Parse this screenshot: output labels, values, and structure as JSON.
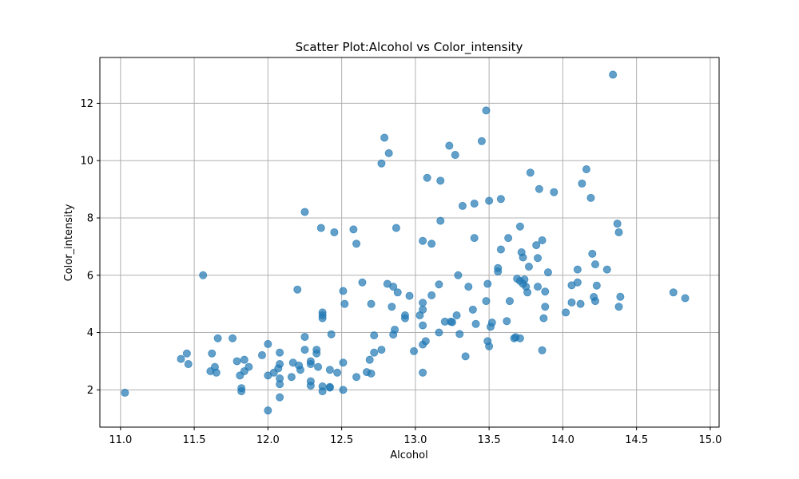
{
  "chart_data": {
    "type": "scatter",
    "title": "Scatter Plot:Alcohol vs Color_intensity",
    "xlabel": "Alcohol",
    "ylabel": "Color_intensity",
    "xlim": [
      10.86,
      15.06
    ],
    "ylim": [
      0.7,
      13.6
    ],
    "xticks": [
      11.0,
      11.5,
      12.0,
      12.5,
      13.0,
      13.5,
      14.0,
      14.5,
      15.0
    ],
    "xtick_labels": [
      "11.0",
      "11.5",
      "12.0",
      "12.5",
      "13.0",
      "13.5",
      "14.0",
      "14.5",
      "15.0"
    ],
    "yticks": [
      2,
      4,
      6,
      8,
      10,
      12
    ],
    "ytick_labels": [
      "2",
      "4",
      "6",
      "8",
      "10",
      "12"
    ],
    "grid": true,
    "marker_color": "#1f77b4",
    "marker_alpha": 0.7,
    "points": [
      [
        11.03,
        1.9
      ],
      [
        11.41,
        3.08
      ],
      [
        11.45,
        3.27
      ],
      [
        11.46,
        2.9
      ],
      [
        11.56,
        6.0
      ],
      [
        11.61,
        2.65
      ],
      [
        11.62,
        3.27
      ],
      [
        11.64,
        2.8
      ],
      [
        11.65,
        2.6
      ],
      [
        11.66,
        3.8
      ],
      [
        11.76,
        3.8
      ],
      [
        11.79,
        3.0
      ],
      [
        11.81,
        2.5
      ],
      [
        11.82,
        2.06
      ],
      [
        11.82,
        1.95
      ],
      [
        11.84,
        3.05
      ],
      [
        11.84,
        2.65
      ],
      [
        11.87,
        2.8
      ],
      [
        11.96,
        3.21
      ],
      [
        12.0,
        3.6
      ],
      [
        12.0,
        2.5
      ],
      [
        12.0,
        1.28
      ],
      [
        12.04,
        2.6
      ],
      [
        12.07,
        2.75
      ],
      [
        12.08,
        2.9
      ],
      [
        12.08,
        3.3
      ],
      [
        12.08,
        2.4
      ],
      [
        12.08,
        2.2
      ],
      [
        12.08,
        1.74
      ],
      [
        12.16,
        2.45
      ],
      [
        12.17,
        2.95
      ],
      [
        12.2,
        5.5
      ],
      [
        12.21,
        2.85
      ],
      [
        12.22,
        2.7
      ],
      [
        12.25,
        3.4
      ],
      [
        12.25,
        3.85
      ],
      [
        12.25,
        8.21
      ],
      [
        12.29,
        3.0
      ],
      [
        12.29,
        2.9
      ],
      [
        12.29,
        2.3
      ],
      [
        12.29,
        2.15
      ],
      [
        12.33,
        3.4
      ],
      [
        12.33,
        3.27
      ],
      [
        12.34,
        2.8
      ],
      [
        12.36,
        7.65
      ],
      [
        12.37,
        4.7
      ],
      [
        12.37,
        4.6
      ],
      [
        12.37,
        4.5
      ],
      [
        12.37,
        2.12
      ],
      [
        12.37,
        1.95
      ],
      [
        12.42,
        2.1
      ],
      [
        12.42,
        2.08
      ],
      [
        12.42,
        2.7
      ],
      [
        12.43,
        3.94
      ],
      [
        12.45,
        7.5
      ],
      [
        12.47,
        2.6
      ],
      [
        12.51,
        5.45
      ],
      [
        12.51,
        2.95
      ],
      [
        12.51,
        2.0
      ],
      [
        12.52,
        5.0
      ],
      [
        12.58,
        7.6
      ],
      [
        12.6,
        7.1
      ],
      [
        12.6,
        2.45
      ],
      [
        12.64,
        5.75
      ],
      [
        12.67,
        2.62
      ],
      [
        12.69,
        3.05
      ],
      [
        12.7,
        5.0
      ],
      [
        12.7,
        2.57
      ],
      [
        12.72,
        3.9
      ],
      [
        12.72,
        3.3
      ],
      [
        12.77,
        3.4
      ],
      [
        12.77,
        9.9
      ],
      [
        12.79,
        10.8
      ],
      [
        12.81,
        5.7
      ],
      [
        12.82,
        10.26
      ],
      [
        12.84,
        4.9
      ],
      [
        12.85,
        5.6
      ],
      [
        12.85,
        3.93
      ],
      [
        12.86,
        4.1
      ],
      [
        12.87,
        7.65
      ],
      [
        12.88,
        5.4
      ],
      [
        12.93,
        4.6
      ],
      [
        12.93,
        4.5
      ],
      [
        12.96,
        5.28
      ],
      [
        12.99,
        3.35
      ],
      [
        13.03,
        4.6
      ],
      [
        13.05,
        5.04
      ],
      [
        13.05,
        4.8
      ],
      [
        13.05,
        4.25
      ],
      [
        13.05,
        3.58
      ],
      [
        13.05,
        7.2
      ],
      [
        13.05,
        2.6
      ],
      [
        13.07,
        3.7
      ],
      [
        13.08,
        9.4
      ],
      [
        13.11,
        5.3
      ],
      [
        13.11,
        7.1
      ],
      [
        13.16,
        5.68
      ],
      [
        13.16,
        4.0
      ],
      [
        13.17,
        9.3
      ],
      [
        13.17,
        7.9
      ],
      [
        13.2,
        4.38
      ],
      [
        13.23,
        10.52
      ],
      [
        13.24,
        4.38
      ],
      [
        13.25,
        4.36
      ],
      [
        13.27,
        10.2
      ],
      [
        13.28,
        4.6
      ],
      [
        13.29,
        6.0
      ],
      [
        13.3,
        3.95
      ],
      [
        13.32,
        8.42
      ],
      [
        13.34,
        3.17
      ],
      [
        13.36,
        5.6
      ],
      [
        13.39,
        4.8
      ],
      [
        13.4,
        7.3
      ],
      [
        13.4,
        8.5
      ],
      [
        13.41,
        4.3
      ],
      [
        13.45,
        10.68
      ],
      [
        13.48,
        11.75
      ],
      [
        13.48,
        5.1
      ],
      [
        13.49,
        5.7
      ],
      [
        13.49,
        3.7
      ],
      [
        13.5,
        3.52
      ],
      [
        13.5,
        8.6
      ],
      [
        13.51,
        4.2
      ],
      [
        13.52,
        4.35
      ],
      [
        13.56,
        6.13
      ],
      [
        13.56,
        6.25
      ],
      [
        13.58,
        6.9
      ],
      [
        13.58,
        8.66
      ],
      [
        13.62,
        4.4
      ],
      [
        13.63,
        7.3
      ],
      [
        13.64,
        5.1
      ],
      [
        13.67,
        3.8
      ],
      [
        13.68,
        3.84
      ],
      [
        13.69,
        5.88
      ],
      [
        13.71,
        5.8
      ],
      [
        13.71,
        3.8
      ],
      [
        13.71,
        7.7
      ],
      [
        13.72,
        6.8
      ],
      [
        13.73,
        6.62
      ],
      [
        13.73,
        5.7
      ],
      [
        13.74,
        5.85
      ],
      [
        13.75,
        5.6
      ],
      [
        13.76,
        5.4
      ],
      [
        13.77,
        6.3
      ],
      [
        13.78,
        9.58
      ],
      [
        13.82,
        7.05
      ],
      [
        13.83,
        6.6
      ],
      [
        13.83,
        5.6
      ],
      [
        13.84,
        9.01
      ],
      [
        13.86,
        7.22
      ],
      [
        13.86,
        3.38
      ],
      [
        13.87,
        4.5
      ],
      [
        13.88,
        5.43
      ],
      [
        13.88,
        4.9
      ],
      [
        13.9,
        6.1
      ],
      [
        13.94,
        8.9
      ],
      [
        14.02,
        4.7
      ],
      [
        14.06,
        5.65
      ],
      [
        14.06,
        5.05
      ],
      [
        14.1,
        6.2
      ],
      [
        14.1,
        5.75
      ],
      [
        14.12,
        5.0
      ],
      [
        14.13,
        9.2
      ],
      [
        14.16,
        9.7
      ],
      [
        14.19,
        8.7
      ],
      [
        14.2,
        6.75
      ],
      [
        14.21,
        5.24
      ],
      [
        14.22,
        6.38
      ],
      [
        14.22,
        5.1
      ],
      [
        14.23,
        5.64
      ],
      [
        14.3,
        6.2
      ],
      [
        14.34,
        13.0
      ],
      [
        14.37,
        7.8
      ],
      [
        14.38,
        7.5
      ],
      [
        14.38,
        4.9
      ],
      [
        14.39,
        5.25
      ],
      [
        14.75,
        5.4
      ],
      [
        14.83,
        5.2
      ]
    ]
  }
}
